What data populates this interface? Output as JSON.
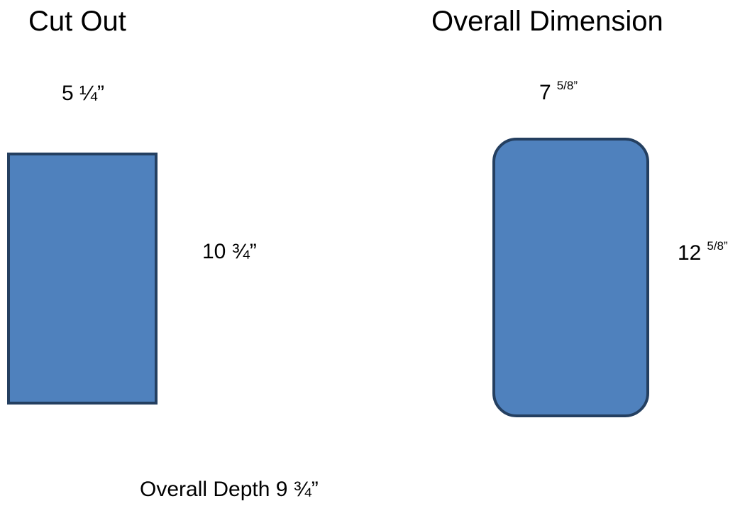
{
  "cutout": {
    "title": "Cut Out",
    "width_label": "5 ¼”",
    "height_label": "10 ¾”"
  },
  "overall": {
    "title": "Overall Dimension",
    "width_main": "7",
    "width_sup": "5/8”",
    "height_main": "12",
    "height_sup": "5/8”"
  },
  "depth_label": "Overall Depth 9 ¾”",
  "colors": {
    "shape_fill": "#4f81bd",
    "shape_stroke": "#243f60"
  }
}
